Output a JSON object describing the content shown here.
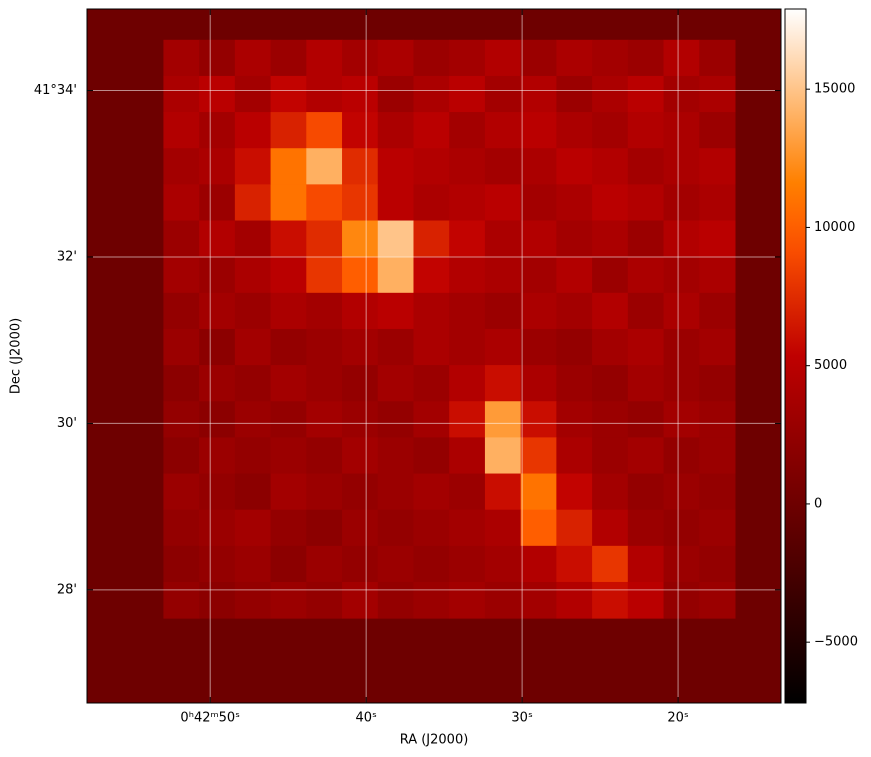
{
  "chart_data": {
    "type": "image",
    "xlabel": "RA (J2000)",
    "ylabel": "Dec (J2000)",
    "xlim": [
      57.9,
      13.4
    ],
    "xticks": [
      {
        "value": 50,
        "label": "0ʰ42ᵐ50ˢ"
      },
      {
        "value": 40,
        "label": "40ˢ"
      },
      {
        "value": 30,
        "label": "30ˢ"
      },
      {
        "value": 20,
        "label": "20ˢ"
      }
    ],
    "ylim": [
      26.64,
      34.98
    ],
    "yticks": [
      {
        "value": 34,
        "label": "41°34'"
      },
      {
        "value": 32,
        "label": "32'"
      },
      {
        "value": 30,
        "label": "30'"
      },
      {
        "value": 28,
        "label": "28'"
      }
    ],
    "grid": true,
    "colormap": "gist_heat",
    "clim": [
      -7200,
      17900
    ],
    "cticks": [
      {
        "value": -5000,
        "label": "−5000"
      },
      0,
      5000,
      10000,
      15000
    ],
    "extent": [
      53.0,
      16.35,
      27.66,
      34.61
    ],
    "z": [
      [
        3500,
        2500,
        4000,
        3000,
        4500,
        3500,
        4000,
        3000,
        3500,
        4500,
        3000,
        4000,
        3500,
        3000,
        4500,
        3000
      ],
      [
        4000,
        5000,
        3500,
        5500,
        4500,
        5000,
        3000,
        4000,
        5000,
        3500,
        4500,
        3000,
        4000,
        5000,
        3500,
        4000
      ],
      [
        4500,
        3500,
        5000,
        7000,
        9000,
        5500,
        4000,
        5000,
        3500,
        4500,
        5000,
        4000,
        3500,
        4500,
        4000,
        3000
      ],
      [
        3500,
        4000,
        6000,
        11000,
        14000,
        7500,
        5000,
        4500,
        4000,
        3500,
        4000,
        5000,
        4500,
        3500,
        4000,
        4500
      ],
      [
        4000,
        3000,
        7000,
        11000,
        9000,
        8000,
        5000,
        4000,
        4500,
        5000,
        3500,
        4000,
        5000,
        4500,
        3500,
        4000
      ],
      [
        3000,
        4500,
        3500,
        6000,
        7500,
        12000,
        15000,
        7000,
        5500,
        4000,
        4500,
        3500,
        4000,
        3000,
        4500,
        5000
      ],
      [
        3500,
        3000,
        4000,
        5000,
        8000,
        10000,
        14000,
        5500,
        4500,
        4000,
        3500,
        4500,
        3000,
        4000,
        3500,
        4000
      ],
      [
        2500,
        3500,
        3000,
        4000,
        3500,
        4500,
        5000,
        4000,
        3500,
        3000,
        4000,
        3500,
        4500,
        3000,
        4000,
        3000
      ],
      [
        3000,
        2000,
        3500,
        2500,
        3000,
        3500,
        3000,
        4000,
        3500,
        4000,
        3000,
        2500,
        3500,
        4000,
        3000,
        3500
      ],
      [
        2000,
        3000,
        2500,
        3500,
        3000,
        2500,
        3500,
        3000,
        4500,
        6000,
        4000,
        3000,
        2500,
        3500,
        3000,
        2500
      ],
      [
        2500,
        2000,
        3000,
        2500,
        3500,
        3000,
        2500,
        3500,
        6000,
        13000,
        6000,
        3500,
        3000,
        2500,
        3500,
        3000
      ],
      [
        2000,
        3000,
        2500,
        3000,
        2500,
        3500,
        3000,
        2500,
        4000,
        14000,
        8000,
        4000,
        3000,
        3500,
        2500,
        3000
      ],
      [
        3000,
        2500,
        2000,
        3500,
        3000,
        2500,
        3000,
        3500,
        3000,
        6000,
        11000,
        5500,
        3500,
        2500,
        3000,
        2500
      ],
      [
        2500,
        3000,
        3500,
        2500,
        2000,
        3000,
        2500,
        3000,
        3500,
        4000,
        10000,
        7000,
        4500,
        3000,
        2500,
        3000
      ],
      [
        2000,
        2500,
        3000,
        2000,
        3000,
        2500,
        3000,
        2500,
        3000,
        3500,
        4500,
        6000,
        8000,
        4500,
        3000,
        2500
      ],
      [
        2500,
        2000,
        2500,
        3000,
        2500,
        3500,
        2500,
        3000,
        3500,
        3000,
        3500,
        4500,
        6000,
        5000,
        2500,
        3000
      ]
    ]
  }
}
